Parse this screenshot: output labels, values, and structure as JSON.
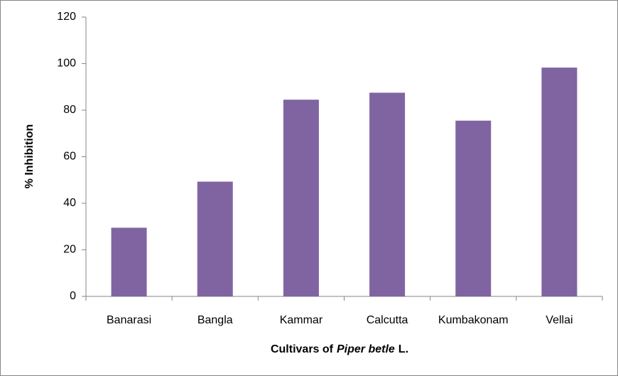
{
  "chart_data": {
    "type": "bar",
    "categories": [
      "Banarasi",
      "Bangla",
      "Kammar",
      "Calcutta",
      "Kumbakonam",
      "Vellai"
    ],
    "values": [
      29.5,
      49.3,
      84.5,
      87.5,
      75.5,
      98.3
    ],
    "color": "#8064a2",
    "ylim": [
      0,
      120
    ],
    "yticks": [
      0,
      20,
      40,
      60,
      80,
      100,
      120
    ],
    "grid": false,
    "ylabel": "% Inhibition",
    "xlabel": [
      "Cultivars of",
      "Piper betle",
      "L."
    ]
  }
}
